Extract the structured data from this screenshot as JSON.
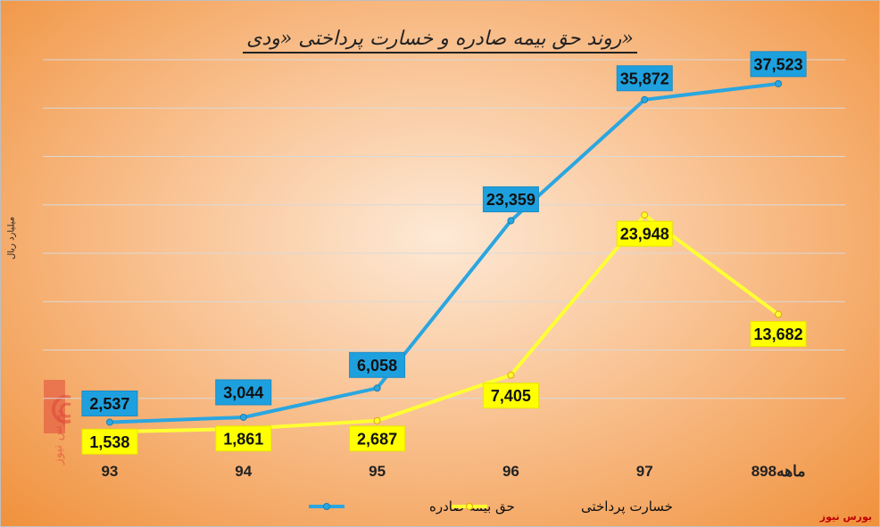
{
  "chart_data": {
    "type": "line",
    "title": "روند حق بیمه صادره و خسارت پرداختی «ودی»",
    "ylabel": "میلیارد ریال",
    "categories": [
      "93",
      "94",
      "95",
      "96",
      "97",
      "8ماهه98"
    ],
    "series": [
      {
        "name": "حق بیمه صادره",
        "color": "#2aa6e0",
        "label_bg": "#1ea0de",
        "values": [
          2537,
          3044,
          6058,
          23359,
          35872,
          37523
        ],
        "labels": [
          "2,537",
          "3,044",
          "6,058",
          "23,359",
          "35,872",
          "37,523"
        ]
      },
      {
        "name": "خسارت پرداختی",
        "color": "#ffff33",
        "label_bg": "#ffff00",
        "values": [
          1538,
          1861,
          2687,
          7405,
          23948,
          13682
        ],
        "labels": [
          "1,538",
          "1,861",
          "2,687",
          "7,405",
          "23,948",
          "13,682"
        ]
      }
    ],
    "ylim": [
      0,
      40000
    ],
    "grid": true,
    "legend": "bottom"
  },
  "watermark": "بورس نیوز",
  "logo_text": "بورس نیوز"
}
